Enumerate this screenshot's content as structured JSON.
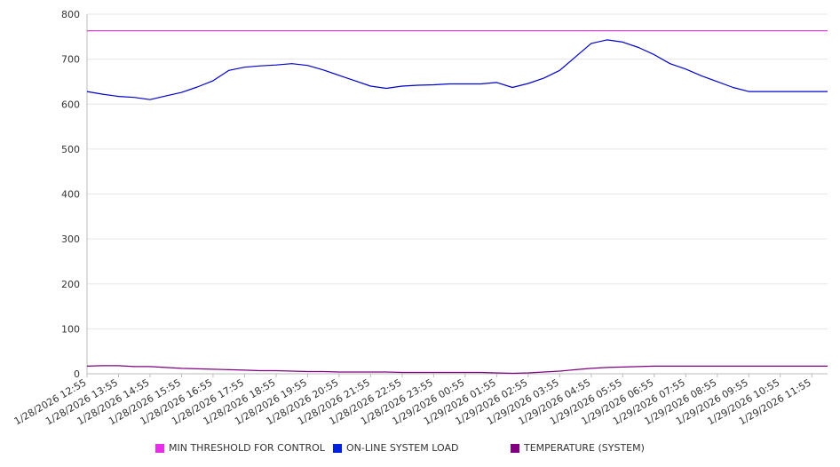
{
  "chart_data": {
    "type": "line",
    "title": "",
    "xlabel": "",
    "ylabel": "",
    "ylim": [
      0,
      800
    ],
    "yticks": [
      0,
      100,
      200,
      300,
      400,
      500,
      600,
      700,
      800
    ],
    "grid": true,
    "legend_position": "bottom",
    "x_tick_labels": [
      "1/28/2026 12:55",
      "1/28/2026 13:55",
      "1/28/2026 14:55",
      "1/28/2026 15:55",
      "1/28/2026 16:55",
      "1/28/2026 17:55",
      "1/28/2026 18:55",
      "1/28/2026 19:55",
      "1/28/2026 20:55",
      "1/28/2026 21:55",
      "1/28/2026 22:55",
      "1/28/2026 23:55",
      "1/29/2026 00:55",
      "1/29/2026 01:55",
      "1/29/2026 02:55",
      "1/29/2026 03:55",
      "1/29/2026 04:55",
      "1/29/2026 05:55",
      "1/29/2026 06:55",
      "1/29/2026 07:55",
      "1/29/2026 08:55",
      "1/29/2026 09:55",
      "1/29/2026 10:55",
      "1/29/2026 11:55"
    ],
    "x": [
      "1/28/2026 12:55",
      "1/28/2026 13:25",
      "1/28/2026 13:55",
      "1/28/2026 14:25",
      "1/28/2026 14:55",
      "1/28/2026 15:25",
      "1/28/2026 15:55",
      "1/28/2026 16:25",
      "1/28/2026 16:55",
      "1/28/2026 17:25",
      "1/28/2026 17:55",
      "1/28/2026 18:25",
      "1/28/2026 18:55",
      "1/28/2026 19:25",
      "1/28/2026 19:55",
      "1/28/2026 20:25",
      "1/28/2026 20:55",
      "1/28/2026 21:25",
      "1/28/2026 21:55",
      "1/28/2026 22:25",
      "1/28/2026 22:55",
      "1/28/2026 23:25",
      "1/28/2026 23:55",
      "1/29/2026 00:25",
      "1/29/2026 00:55",
      "1/29/2026 01:25",
      "1/29/2026 01:55",
      "1/29/2026 02:25",
      "1/29/2026 02:55",
      "1/29/2026 03:25",
      "1/29/2026 03:55",
      "1/29/2026 04:25",
      "1/29/2026 04:55",
      "1/29/2026 05:25",
      "1/29/2026 05:55",
      "1/29/2026 06:25",
      "1/29/2026 06:55",
      "1/29/2026 07:25",
      "1/29/2026 07:55",
      "1/29/2026 08:25",
      "1/29/2026 08:55",
      "1/29/2026 09:25",
      "1/29/2026 09:55",
      "1/29/2026 10:25",
      "1/29/2026 10:55",
      "1/29/2026 11:25",
      "1/29/2026 11:55",
      "1/29/2026 12:25"
    ],
    "series": [
      {
        "name": "MIN THRESHOLD FOR CONTROL",
        "color": "#cc33cc",
        "values": [
          763,
          763,
          763,
          763,
          763,
          763,
          763,
          763,
          763,
          763,
          763,
          763,
          763,
          763,
          763,
          763,
          763,
          763,
          763,
          763,
          763,
          763,
          763,
          763,
          763,
          763,
          763,
          763,
          763,
          763,
          763,
          763,
          763,
          763,
          763,
          763,
          763,
          763,
          763,
          763,
          763,
          763,
          763,
          763,
          763,
          763,
          763,
          763
        ]
      },
      {
        "name": "ON-LINE SYSTEM LOAD",
        "color": "#0000cc",
        "values": [
          628,
          622,
          617,
          615,
          610,
          618,
          626,
          638,
          652,
          675,
          682,
          685,
          687,
          690,
          686,
          676,
          664,
          652,
          640,
          635,
          640,
          642,
          643,
          645,
          645,
          645,
          648,
          637,
          646,
          658,
          675,
          705,
          735,
          743,
          738,
          726,
          710,
          690,
          678,
          663,
          650,
          637,
          628,
          628,
          628,
          628,
          628,
          628
        ]
      },
      {
        "name": "TEMPERATURE (SYSTEM)",
        "color": "#800080",
        "values": [
          17,
          18,
          18,
          16,
          16,
          14,
          12,
          11,
          10,
          9,
          8,
          7,
          7,
          6,
          5,
          5,
          4,
          4,
          4,
          4,
          3,
          3,
          3,
          3,
          3,
          3,
          2,
          1,
          2,
          4,
          6,
          9,
          12,
          14,
          15,
          16,
          17,
          17,
          17,
          17,
          17,
          17,
          17,
          17,
          17,
          17,
          17,
          17
        ]
      }
    ]
  }
}
